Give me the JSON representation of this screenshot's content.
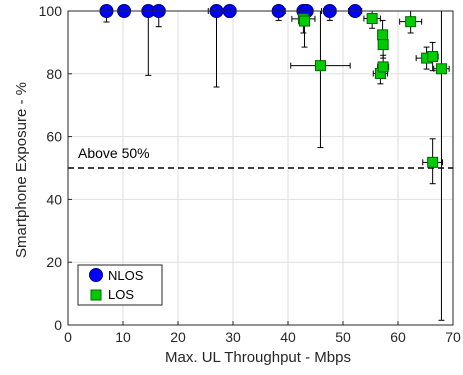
{
  "chart_data": {
    "type": "scatter",
    "xlabel": "Max. UL Throughput - Mbps",
    "ylabel": "Smartphone Exposure - %",
    "xlim": [
      0,
      70
    ],
    "ylim": [
      0,
      100
    ],
    "xticks": [
      0,
      10,
      20,
      30,
      40,
      50,
      60,
      70
    ],
    "yticks": [
      0,
      20,
      40,
      60,
      80,
      100
    ],
    "grid": true,
    "legend_position": "bottom-left",
    "threshold": {
      "y": 50,
      "label": "Above 50%",
      "style": "dashed"
    },
    "series": [
      {
        "name": "NLOS",
        "marker": "circle",
        "color": "#0000ff",
        "points": [
          {
            "x": 7.0,
            "y": 100,
            "ylow": 96.5,
            "yhigh": 100,
            "xlow": 6.5,
            "xhigh": 7.5
          },
          {
            "x": 10.2,
            "y": 100,
            "ylow": 99,
            "yhigh": 100,
            "xlow": 9.8,
            "xhigh": 10.6
          },
          {
            "x": 14.6,
            "y": 100,
            "ylow": 79.5,
            "yhigh": 100,
            "xlow": 13.9,
            "xhigh": 15.3
          },
          {
            "x": 16.5,
            "y": 100,
            "ylow": 95,
            "yhigh": 100,
            "xlow": 15.4,
            "xhigh": 17.6
          },
          {
            "x": 27.0,
            "y": 100,
            "ylow": 75.8,
            "yhigh": 100,
            "xlow": 25.5,
            "xhigh": 28.5
          },
          {
            "x": 29.4,
            "y": 100,
            "ylow": 98,
            "yhigh": 100,
            "xlow": 28.3,
            "xhigh": 30.5
          },
          {
            "x": 38.3,
            "y": 100,
            "ylow": 97,
            "yhigh": 100,
            "xlow": 37.7,
            "xhigh": 38.9
          },
          {
            "x": 42.8,
            "y": 100,
            "ylow": 97,
            "yhigh": 100,
            "xlow": 39.5,
            "xhigh": 46.1
          },
          {
            "x": 43.4,
            "y": 100,
            "ylow": 98,
            "yhigh": 100,
            "xlow": 42.5,
            "xhigh": 44.3
          },
          {
            "x": 47.6,
            "y": 100,
            "ylow": 97,
            "yhigh": 100,
            "xlow": 46.5,
            "xhigh": 48.7
          },
          {
            "x": 52.2,
            "y": 100,
            "ylow": 99,
            "yhigh": 100,
            "xlow": 51.0,
            "xhigh": 53.4
          }
        ]
      },
      {
        "name": "LOS",
        "marker": "square",
        "color": "#00cc00",
        "points": [
          {
            "x": 42.8,
            "y": 97.5,
            "ylow": 93,
            "yhigh": 100,
            "xlow": 40.7,
            "xhigh": 44.9
          },
          {
            "x": 43.0,
            "y": 96.8,
            "ylow": 88.5,
            "yhigh": 100,
            "xlow": 42.5,
            "xhigh": 43.5
          },
          {
            "x": 45.9,
            "y": 82.6,
            "ylow": 56.5,
            "yhigh": 100,
            "xlow": 40.5,
            "xhigh": 51.3
          },
          {
            "x": 55.3,
            "y": 97.6,
            "ylow": 94.5,
            "yhigh": 100,
            "xlow": 53.8,
            "xhigh": 56.8
          },
          {
            "x": 56.8,
            "y": 80.1,
            "ylow": 76.8,
            "yhigh": 83.4,
            "xlow": 55.5,
            "xhigh": 58.1
          },
          {
            "x": 57.2,
            "y": 92.4,
            "ylow": 87.8,
            "yhigh": 97,
            "xlow": 56.5,
            "xhigh": 57.9
          },
          {
            "x": 57.3,
            "y": 89.3,
            "ylow": 85,
            "yhigh": 93.6,
            "xlow": 56.6,
            "xhigh": 58.0
          },
          {
            "x": 57.3,
            "y": 82.2,
            "ylow": 78.5,
            "yhigh": 85.9,
            "xlow": 56.3,
            "xhigh": 58.3
          },
          {
            "x": 62.3,
            "y": 96.6,
            "ylow": 93,
            "yhigh": 100,
            "xlow": 60.3,
            "xhigh": 64.3
          },
          {
            "x": 65.2,
            "y": 85.0,
            "ylow": 81.5,
            "yhigh": 88.5,
            "xlow": 63.3,
            "xhigh": 67.1
          },
          {
            "x": 66.3,
            "y": 85.5,
            "ylow": 81,
            "yhigh": 90,
            "xlow": 65.3,
            "xhigh": 67.3
          },
          {
            "x": 66.3,
            "y": 51.8,
            "ylow": 45,
            "yhigh": 59.3,
            "xlow": 64.5,
            "xhigh": 68.1
          },
          {
            "x": 67.9,
            "y": 81.6,
            "ylow": 1.5,
            "yhigh": 100,
            "xlow": 66.5,
            "xhigh": 69.3
          }
        ]
      }
    ]
  },
  "colors": {
    "grid": "#dfdfdf",
    "axis": "#262626",
    "nlos_fill": "#0000ff",
    "nlos_stroke": "#00007a",
    "los_fill": "#00cc00",
    "los_stroke": "#006600"
  }
}
